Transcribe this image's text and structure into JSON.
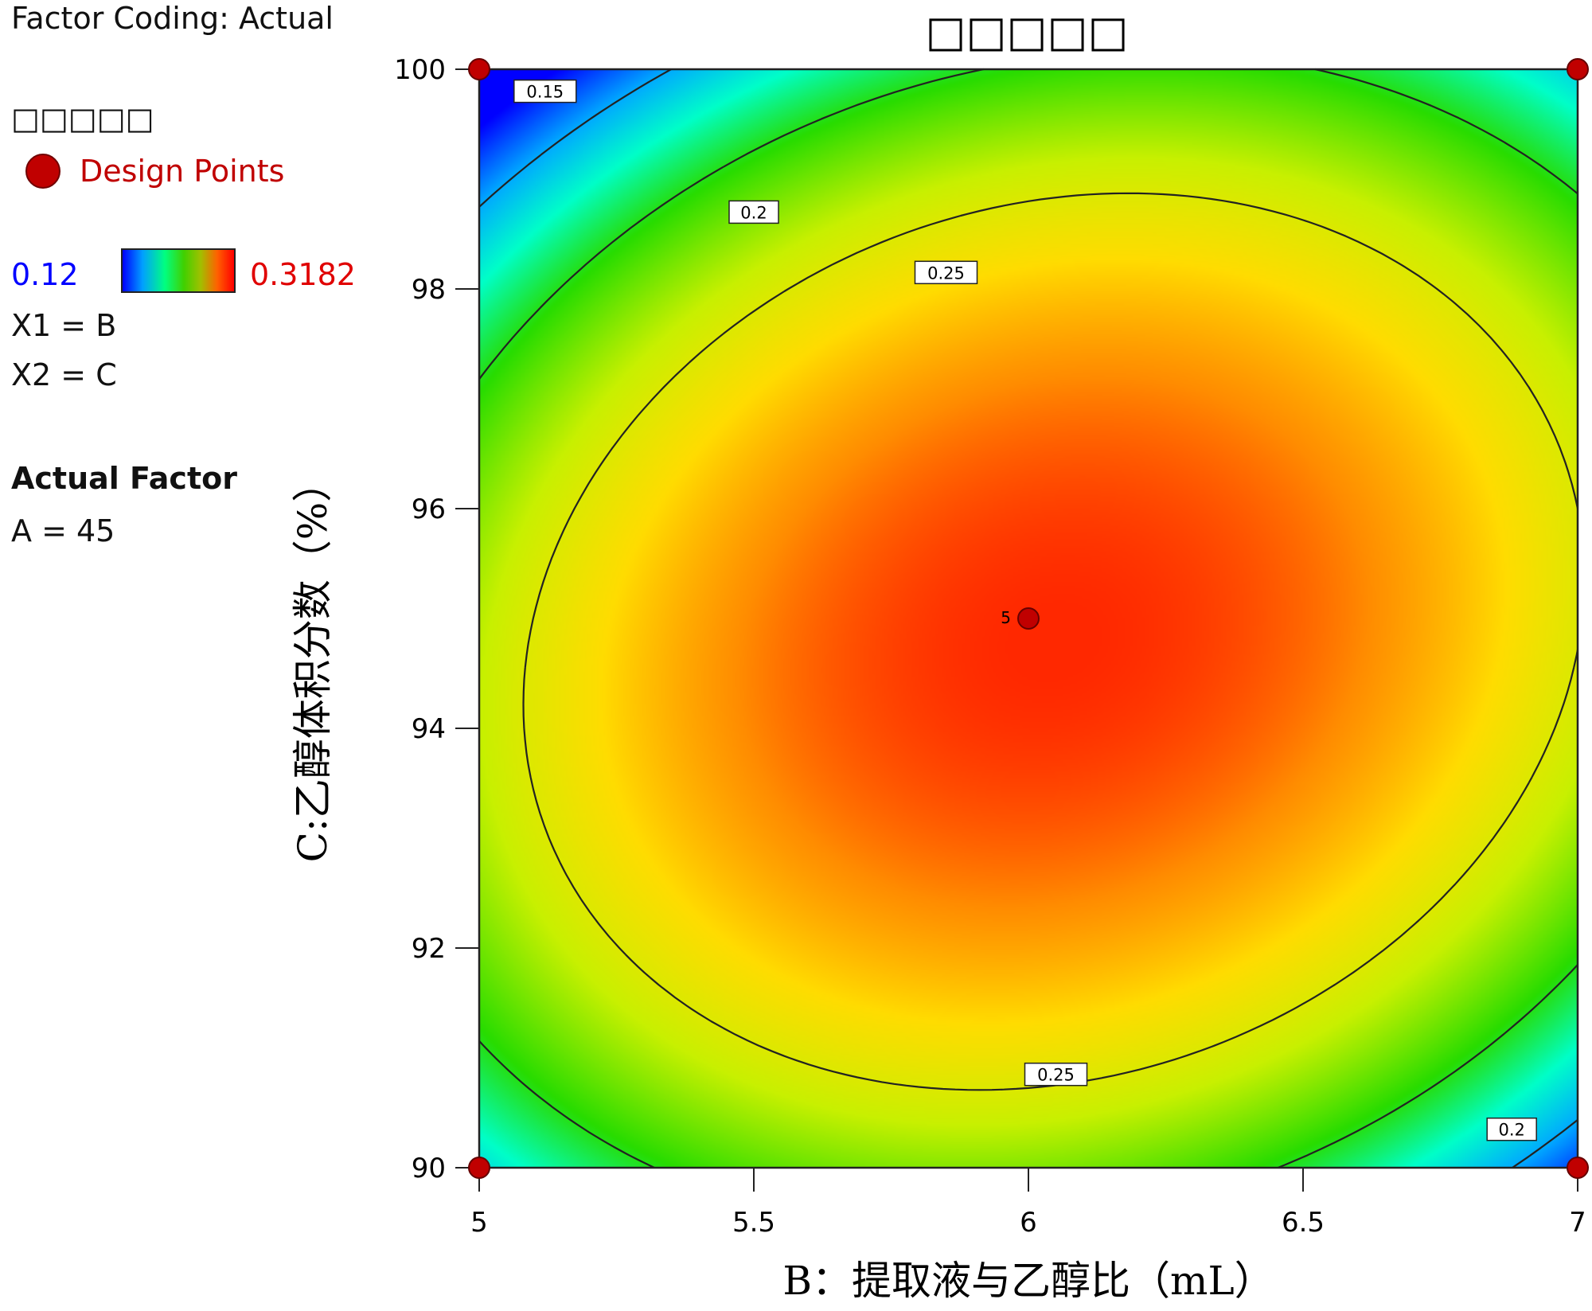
{
  "sidebar": {
    "factor_coding": "Factor Coding: Actual",
    "response_name": "□□□□□",
    "design_points_label": "Design Points",
    "scale_min": "0.12",
    "scale_max": "0.3182",
    "x1_mapping": "X1 = B",
    "x2_mapping": "X2 = C",
    "actual_factor_heading": "Actual Factor",
    "actual_factor_value": "A = 45"
  },
  "colors": {
    "design_point": "#c00000",
    "scale_min_text": "#0000ff",
    "scale_max_text": "#e00000",
    "design_points_text": "#c00000"
  },
  "chart_data": {
    "type": "contour",
    "title": "□□□□□",
    "xlabel": "B：提取液与乙醇比（mL）",
    "ylabel": "C:乙醇体积分数（%）",
    "xlim": [
      5,
      7
    ],
    "ylim": [
      90,
      100
    ],
    "x_ticks": [
      5,
      5.5,
      6,
      6.5,
      7
    ],
    "x_tick_labels": [
      "5",
      "5.5",
      "6",
      "6.5",
      "7"
    ],
    "y_ticks": [
      90,
      92,
      94,
      96,
      98,
      100
    ],
    "y_tick_labels": [
      "90",
      "92",
      "94",
      "96",
      "98",
      "100"
    ],
    "response_range": [
      0.12,
      0.3182
    ],
    "contour_levels": [
      0.15,
      0.2,
      0.25
    ],
    "contour_labels": [
      {
        "text": "0.15",
        "x": 5.12,
        "y": 99.8
      },
      {
        "text": "0.2",
        "x": 5.5,
        "y": 98.7
      },
      {
        "text": "0.2",
        "x": 6.88,
        "y": 90.35
      },
      {
        "text": "0.25",
        "x": 5.85,
        "y": 98.15
      },
      {
        "text": "0.25",
        "x": 6.05,
        "y": 90.85
      }
    ],
    "design_points": [
      {
        "x": 5,
        "y": 100,
        "label": ""
      },
      {
        "x": 7,
        "y": 100,
        "label": ""
      },
      {
        "x": 5,
        "y": 90,
        "label": ""
      },
      {
        "x": 7,
        "y": 90,
        "label": ""
      },
      {
        "x": 6,
        "y": 95,
        "label": "5"
      }
    ]
  }
}
